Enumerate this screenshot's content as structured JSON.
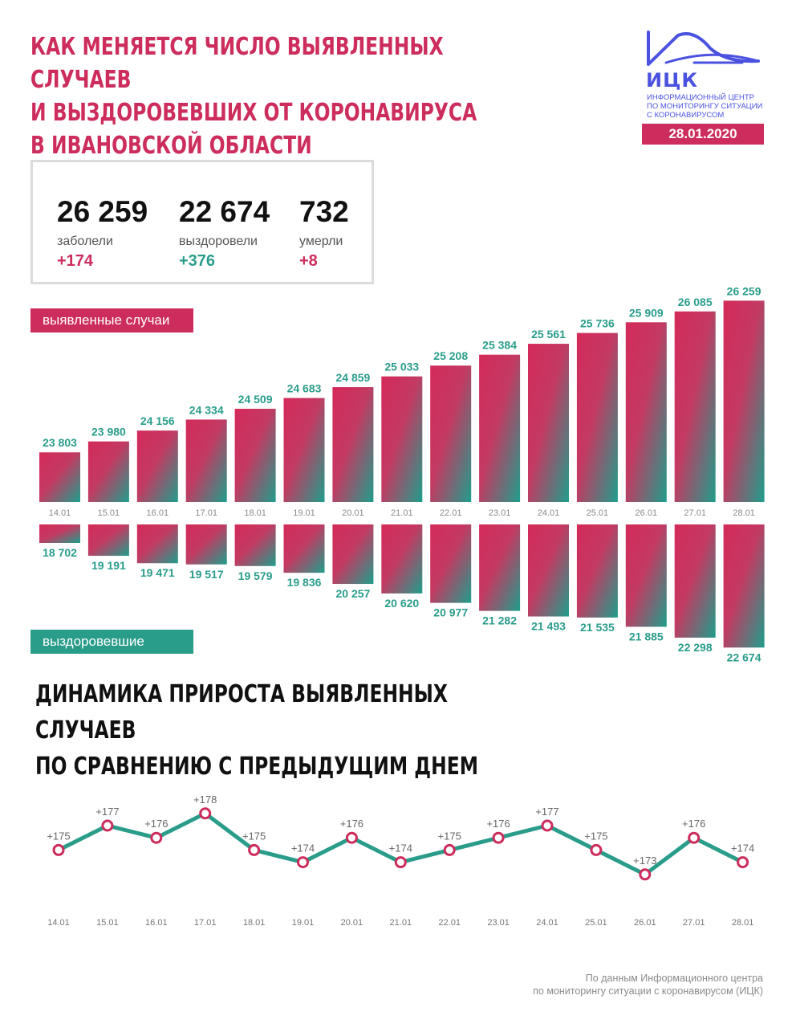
{
  "header": {
    "title_lines": [
      "КАК МЕНЯЕТСЯ ЧИСЛО ВЫЯВЛЕННЫХ СЛУЧАЕВ",
      "И ВЫЗДОРОВЕВШИХ ОТ КОРОНАВИРУСА",
      "В ИВАНОВСКОЙ ОБЛАСТИ"
    ],
    "logo_name": "ИЦК",
    "logo_sub": [
      "ИНФОРМАЦИОННЫЙ ЦЕНТР",
      "ПО МОНИТОРИНГУ СИТУАЦИИ",
      "С КОРОНАВИРУСОМ"
    ],
    "date": "28.01.2020"
  },
  "stats": [
    {
      "value": "26 259",
      "label": "заболели",
      "delta": "+174",
      "color": "#cc2d5c"
    },
    {
      "value": "22 674",
      "label": "выздоровели",
      "delta": "+376",
      "color": "#2a9d8a"
    },
    {
      "value": "732",
      "label": "умерли",
      "delta": "+8",
      "color": "#cc2d5c"
    }
  ],
  "legend": {
    "detected": "выявленные случаи",
    "recovered": "выздоровевшие"
  },
  "colors": {
    "accent_red": "#cc2d5c",
    "accent_teal": "#2a9d8a",
    "text_dark": "#111111",
    "muted": "#8a8a8a"
  },
  "chart_data": [
    {
      "type": "bar",
      "categories": [
        "14.01",
        "15.01",
        "16.01",
        "17.01",
        "18.01",
        "19.01",
        "20.01",
        "21.01",
        "22.01",
        "23.01",
        "24.01",
        "25.01",
        "26.01",
        "27.01",
        "28.01"
      ],
      "series": [
        {
          "name": "выявленные случаи",
          "values": [
            23803,
            23980,
            24156,
            24334,
            24509,
            24683,
            24859,
            25033,
            25208,
            25384,
            25561,
            25736,
            25909,
            26085,
            26259
          ],
          "labels": [
            "23 803",
            "23 980",
            "24 156",
            "24 334",
            "24 509",
            "24 683",
            "24 859",
            "25 033",
            "25 208",
            "25 384",
            "25 561",
            "25 736",
            "25 909",
            "26 085",
            "26 259"
          ]
        },
        {
          "name": "выздоровевшие",
          "values": [
            18702,
            19191,
            19471,
            19517,
            19579,
            19836,
            20257,
            20620,
            20977,
            21282,
            21493,
            21535,
            21885,
            22298,
            22674
          ],
          "labels": [
            "18 702",
            "19 191",
            "19 471",
            "19 517",
            "19 579",
            "19 836",
            "20 257",
            "20 620",
            "20 977",
            "21 282",
            "21 493",
            "21 535",
            "21 885",
            "22 298",
            "22 674"
          ]
        }
      ]
    },
    {
      "type": "line",
      "title_lines": [
        "ДИНАМИКА ПРИРОСТА ВЫЯВЛЕННЫХ СЛУЧАЕВ",
        "ПО СРАВНЕНИЮ С ПРЕДЫДУЩИМ ДНЕМ"
      ],
      "categories": [
        "14.01",
        "15.01",
        "16.01",
        "17.01",
        "18.01",
        "19.01",
        "20.01",
        "21.01",
        "22.01",
        "23.01",
        "24.01",
        "25.01",
        "26.01",
        "27.01",
        "28.01"
      ],
      "values": [
        175,
        177,
        176,
        178,
        175,
        174,
        176,
        174,
        175,
        176,
        177,
        175,
        173,
        176,
        174
      ],
      "labels": [
        "+175",
        "+177",
        "+176",
        "+178",
        "+175",
        "+174",
        "+176",
        "+174",
        "+175",
        "+176",
        "+177",
        "+175",
        "+173",
        "+176",
        "+174"
      ]
    }
  ],
  "source_lines": [
    "По данным Информационного центра",
    "по мониторингу ситуации с коронавирусом (ИЦК)"
  ]
}
